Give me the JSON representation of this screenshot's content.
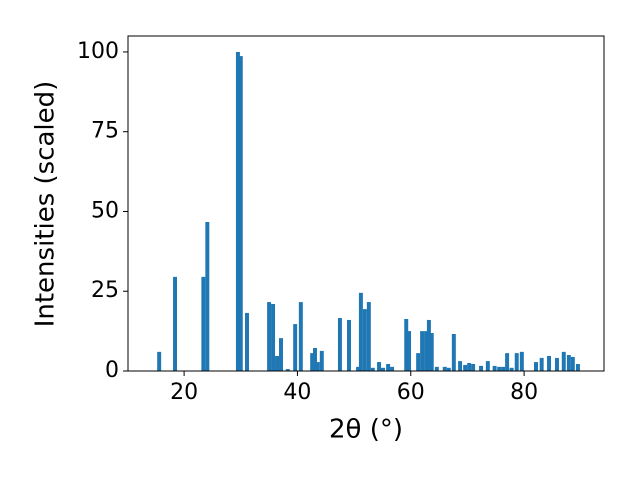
{
  "chart_data": {
    "type": "bar",
    "x_label": "2θ (°)",
    "y_label": "Intensities (scaled)",
    "x": [
      15.6,
      18.4,
      23.4,
      24.1,
      29.5,
      30.0,
      31.1,
      35.0,
      35.7,
      36.4,
      37.1,
      38.3,
      39.6,
      40.6,
      42.6,
      43.1,
      43.6,
      44.3,
      47.5,
      49.1,
      50.7,
      51.2,
      51.9,
      52.6,
      53.3,
      54.4,
      55.1,
      56.0,
      56.7,
      59.2,
      59.7,
      61.3,
      62.0,
      62.7,
      63.2,
      63.7,
      64.6,
      66.0,
      66.7,
      67.6,
      68.7,
      69.6,
      70.3,
      71.0,
      72.4,
      73.6,
      74.8,
      75.6,
      76.3,
      77.0,
      77.8,
      78.7,
      79.6,
      82.1,
      83.1,
      84.4,
      85.8,
      87.0,
      87.9,
      88.6,
      89.5
    ],
    "values": [
      6,
      29.5,
      29.5,
      46.7,
      100,
      98.7,
      18.2,
      21.6,
      21,
      4.7,
      10.3,
      0.6,
      14.7,
      21.6,
      5.6,
      7.2,
      2.8,
      6.3,
      16.6,
      16,
      1.3,
      24.5,
      19.4,
      21.6,
      1,
      2.8,
      1,
      2.2,
      1.3,
      16.3,
      12.5,
      5.6,
      12.5,
      12.5,
      16,
      11.9,
      1.3,
      1.3,
      1,
      11.6,
      3.1,
      1.9,
      2.5,
      2.2,
      1.6,
      3.1,
      1.6,
      1.3,
      1.3,
      5.6,
      1,
      5.6,
      6,
      2.8,
      4.1,
      4.7,
      4.1,
      6,
      5,
      4.4,
      2.2
    ],
    "color": "#1f77b4",
    "xlim": [
      10.1,
      94.1
    ],
    "xticks": [
      20,
      40,
      60,
      80
    ],
    "ylim": [
      0,
      105
    ],
    "yticks": [
      0,
      25,
      50,
      75,
      100
    ],
    "grid": false
  }
}
